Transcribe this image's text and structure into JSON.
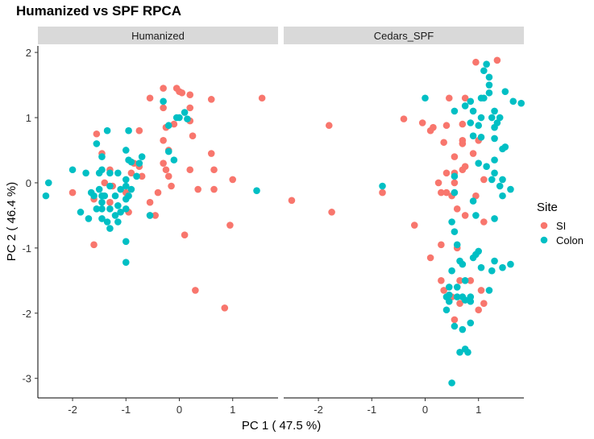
{
  "chart_data": {
    "type": "scatter",
    "title": "Humanized vs SPF RPCA",
    "xlabel": "PC 1 ( 47.5 %)",
    "ylabel": "PC 2 ( 46.4 %)",
    "xlim": [
      -2.65,
      1.85
    ],
    "ylim": [
      -3.3,
      2.1
    ],
    "x_ticks": [
      -2,
      -1,
      0,
      1
    ],
    "y_ticks": [
      2,
      1,
      0,
      -1,
      -2,
      -3
    ],
    "grid": false,
    "legend": {
      "title": "Site",
      "position": "right"
    },
    "facets": [
      {
        "name": "Humanized",
        "series": [
          {
            "name": "SI",
            "color": "#F8766D",
            "points": [
              [
                -0.3,
                1.45
              ],
              [
                -0.05,
                1.45
              ],
              [
                0.0,
                1.4
              ],
              [
                0.05,
                1.38
              ],
              [
                0.2,
                1.35
              ],
              [
                -0.55,
                1.3
              ],
              [
                0.6,
                1.28
              ],
              [
                1.55,
                1.3
              ],
              [
                -0.3,
                1.15
              ],
              [
                0.2,
                1.15
              ],
              [
                0.2,
                0.95
              ],
              [
                -0.1,
                0.9
              ],
              [
                -0.25,
                0.85
              ],
              [
                0.25,
                0.72
              ],
              [
                -1.55,
                0.75
              ],
              [
                -0.75,
                0.8
              ],
              [
                -0.3,
                0.65
              ],
              [
                -0.2,
                0.5
              ],
              [
                0.6,
                0.45
              ],
              [
                -1.45,
                0.45
              ],
              [
                -0.3,
                0.3
              ],
              [
                -0.85,
                0.3
              ],
              [
                -0.75,
                0.25
              ],
              [
                -1.3,
                0.2
              ],
              [
                -0.9,
                0.15
              ],
              [
                -0.25,
                0.2
              ],
              [
                0.2,
                0.2
              ],
              [
                0.65,
                0.2
              ],
              [
                -0.7,
                0.1
              ],
              [
                -0.2,
                0.1
              ],
              [
                1.0,
                0.05
              ],
              [
                -1.4,
                0.0
              ],
              [
                -1.25,
                -0.05
              ],
              [
                -0.15,
                -0.05
              ],
              [
                0.35,
                -0.1
              ],
              [
                0.65,
                -0.1
              ],
              [
                -2.0,
                -0.15
              ],
              [
                -1.0,
                -0.15
              ],
              [
                -0.4,
                -0.15
              ],
              [
                -1.6,
                -0.25
              ],
              [
                -1.3,
                -0.3
              ],
              [
                -0.55,
                -0.3
              ],
              [
                -0.95,
                -0.45
              ],
              [
                -0.55,
                -0.5
              ],
              [
                -0.45,
                -0.5
              ],
              [
                0.95,
                -0.65
              ],
              [
                0.1,
                -0.8
              ],
              [
                -1.6,
                -0.95
              ],
              [
                0.3,
                -1.65
              ],
              [
                0.85,
                -1.92
              ]
            ]
          },
          {
            "name": "Colon",
            "color": "#00BFC4",
            "points": [
              [
                -0.3,
                1.25
              ],
              [
                0.1,
                1.08
              ],
              [
                0.0,
                1.0
              ],
              [
                -0.05,
                1.0
              ],
              [
                0.15,
                0.98
              ],
              [
                -0.2,
                0.88
              ],
              [
                -0.95,
                0.8
              ],
              [
                -1.35,
                0.8
              ],
              [
                -1.55,
                0.6
              ],
              [
                -1.0,
                0.5
              ],
              [
                -0.2,
                0.48
              ],
              [
                -0.7,
                0.4
              ],
              [
                -1.45,
                0.4
              ],
              [
                -0.1,
                0.35
              ],
              [
                -0.95,
                0.35
              ],
              [
                -0.9,
                0.32
              ],
              [
                -0.75,
                0.3
              ],
              [
                -2.0,
                0.2
              ],
              [
                -1.45,
                0.2
              ],
              [
                -1.3,
                0.15
              ],
              [
                -1.75,
                0.15
              ],
              [
                -1.5,
                0.15
              ],
              [
                -1.15,
                0.15
              ],
              [
                -0.8,
                0.1
              ],
              [
                -1.0,
                0.05
              ],
              [
                -2.45,
                0.0
              ],
              [
                -1.3,
                -0.05
              ],
              [
                -1.0,
                -0.05
              ],
              [
                -0.9,
                -0.1
              ],
              [
                -1.1,
                -0.1
              ],
              [
                -1.5,
                -0.1
              ],
              [
                -1.65,
                -0.15
              ],
              [
                -1.4,
                -0.2
              ],
              [
                -1.45,
                -0.2
              ],
              [
                -1.6,
                -0.2
              ],
              [
                -1.2,
                -0.2
              ],
              [
                -0.95,
                -0.2
              ],
              [
                -1.0,
                -0.25
              ],
              [
                1.45,
                -0.12
              ],
              [
                -2.5,
                -0.2
              ],
              [
                -1.45,
                -0.3
              ],
              [
                -1.15,
                -0.35
              ],
              [
                -1.55,
                -0.4
              ],
              [
                -1.45,
                -0.4
              ],
              [
                -1.3,
                -0.4
              ],
              [
                -1.85,
                -0.45
              ],
              [
                -1.1,
                -0.45
              ],
              [
                -1.0,
                -0.4
              ],
              [
                -1.2,
                -0.5
              ],
              [
                -0.55,
                -0.5
              ],
              [
                -1.45,
                -0.55
              ],
              [
                -1.7,
                -0.55
              ],
              [
                -1.35,
                -0.6
              ],
              [
                -1.15,
                -0.6
              ],
              [
                -1.3,
                -0.7
              ],
              [
                -1.0,
                -0.9
              ],
              [
                -1.0,
                -1.22
              ]
            ]
          }
        ]
      },
      {
        "name": "Cedars_SPF",
        "series": [
          {
            "name": "SI",
            "color": "#F8766D",
            "points": [
              [
                1.35,
                1.88
              ],
              [
                0.95,
                1.85
              ],
              [
                0.45,
                1.3
              ],
              [
                0.75,
                1.3
              ],
              [
                -1.8,
                0.88
              ],
              [
                -0.4,
                0.98
              ],
              [
                -0.05,
                0.92
              ],
              [
                0.15,
                0.85
              ],
              [
                0.1,
                0.8
              ],
              [
                0.4,
                0.88
              ],
              [
                0.7,
                0.9
              ],
              [
                0.7,
                0.65
              ],
              [
                1.0,
                0.65
              ],
              [
                0.35,
                0.62
              ],
              [
                0.7,
                0.6
              ],
              [
                0.9,
                0.45
              ],
              [
                0.55,
                0.4
              ],
              [
                0.75,
                0.25
              ],
              [
                0.4,
                0.15
              ],
              [
                0.55,
                0.15
              ],
              [
                0.7,
                0.2
              ],
              [
                0.25,
                0.0
              ],
              [
                0.55,
                0.0
              ],
              [
                1.1,
                0.05
              ],
              [
                0.3,
                -0.15
              ],
              [
                0.4,
                -0.15
              ],
              [
                0.5,
                -0.2
              ],
              [
                0.95,
                -0.2
              ],
              [
                -0.8,
                -0.15
              ],
              [
                -2.5,
                -0.27
              ],
              [
                -1.75,
                -0.45
              ],
              [
                0.6,
                -0.4
              ],
              [
                0.75,
                -0.5
              ],
              [
                1.1,
                -0.6
              ],
              [
                -0.2,
                -0.65
              ],
              [
                0.3,
                -0.95
              ],
              [
                0.6,
                -1.0
              ],
              [
                0.1,
                -1.15
              ],
              [
                0.3,
                -1.5
              ],
              [
                0.65,
                -1.5
              ],
              [
                0.85,
                -1.5
              ],
              [
                1.05,
                -1.65
              ],
              [
                0.35,
                -1.65
              ],
              [
                0.5,
                -1.75
              ],
              [
                1.1,
                -1.85
              ],
              [
                0.65,
                -1.85
              ],
              [
                1.0,
                -1.95
              ],
              [
                0.55,
                -2.1
              ]
            ]
          },
          {
            "name": "Colon",
            "color": "#00BFC4",
            "points": [
              [
                1.15,
                1.82
              ],
              [
                1.1,
                1.72
              ],
              [
                1.2,
                1.62
              ],
              [
                1.2,
                1.5
              ],
              [
                1.2,
                1.38
              ],
              [
                1.5,
                1.4
              ],
              [
                1.05,
                1.3
              ],
              [
                1.1,
                1.3
              ],
              [
                1.65,
                1.25
              ],
              [
                1.8,
                1.22
              ],
              [
                0.0,
                1.3
              ],
              [
                0.85,
                1.25
              ],
              [
                0.75,
                1.18
              ],
              [
                0.9,
                1.1
              ],
              [
                1.3,
                1.1
              ],
              [
                0.55,
                1.1
              ],
              [
                1.05,
                1.0
              ],
              [
                1.25,
                1.0
              ],
              [
                1.4,
                1.0
              ],
              [
                0.85,
                0.92
              ],
              [
                1.35,
                0.92
              ],
              [
                1.3,
                0.85
              ],
              [
                1.0,
                0.88
              ],
              [
                0.9,
                0.72
              ],
              [
                1.05,
                0.7
              ],
              [
                1.3,
                0.68
              ],
              [
                1.5,
                0.55
              ],
              [
                1.45,
                0.52
              ],
              [
                1.3,
                0.35
              ],
              [
                1.0,
                0.3
              ],
              [
                1.15,
                0.25
              ],
              [
                1.3,
                0.15
              ],
              [
                1.45,
                0.05
              ],
              [
                0.55,
                0.1
              ],
              [
                1.25,
                0.05
              ],
              [
                1.4,
                -0.05
              ],
              [
                1.6,
                -0.1
              ],
              [
                -0.8,
                -0.05
              ],
              [
                0.55,
                -0.15
              ],
              [
                1.45,
                -0.2
              ],
              [
                0.9,
                -0.28
              ],
              [
                0.95,
                -0.5
              ],
              [
                1.3,
                -0.55
              ],
              [
                0.5,
                -0.6
              ],
              [
                0.55,
                -0.75
              ],
              [
                0.6,
                -0.95
              ],
              [
                1.0,
                -1.05
              ],
              [
                0.95,
                -1.1
              ],
              [
                0.9,
                -1.15
              ],
              [
                0.65,
                -1.2
              ],
              [
                1.3,
                -1.2
              ],
              [
                1.45,
                -1.3
              ],
              [
                1.6,
                -1.25
              ],
              [
                1.05,
                -1.3
              ],
              [
                0.7,
                -1.25
              ],
              [
                0.5,
                -1.35
              ],
              [
                1.25,
                -1.35
              ],
              [
                0.75,
                -1.5
              ],
              [
                0.45,
                -1.6
              ],
              [
                0.6,
                -1.6
              ],
              [
                0.6,
                -1.75
              ],
              [
                0.85,
                -1.75
              ],
              [
                0.75,
                -1.8
              ],
              [
                0.85,
                -1.82
              ],
              [
                0.45,
                -1.72
              ],
              [
                0.4,
                -1.75
              ],
              [
                0.7,
                -1.75
              ],
              [
                0.45,
                -1.82
              ],
              [
                1.2,
                -1.65
              ],
              [
                0.4,
                -1.95
              ],
              [
                0.85,
                -2.15
              ],
              [
                0.7,
                -2.25
              ],
              [
                0.75,
                -2.55
              ],
              [
                0.8,
                -2.6
              ],
              [
                0.65,
                -2.6
              ],
              [
                0.55,
                -2.2
              ],
              [
                0.5,
                -3.07
              ]
            ]
          }
        ]
      }
    ]
  }
}
